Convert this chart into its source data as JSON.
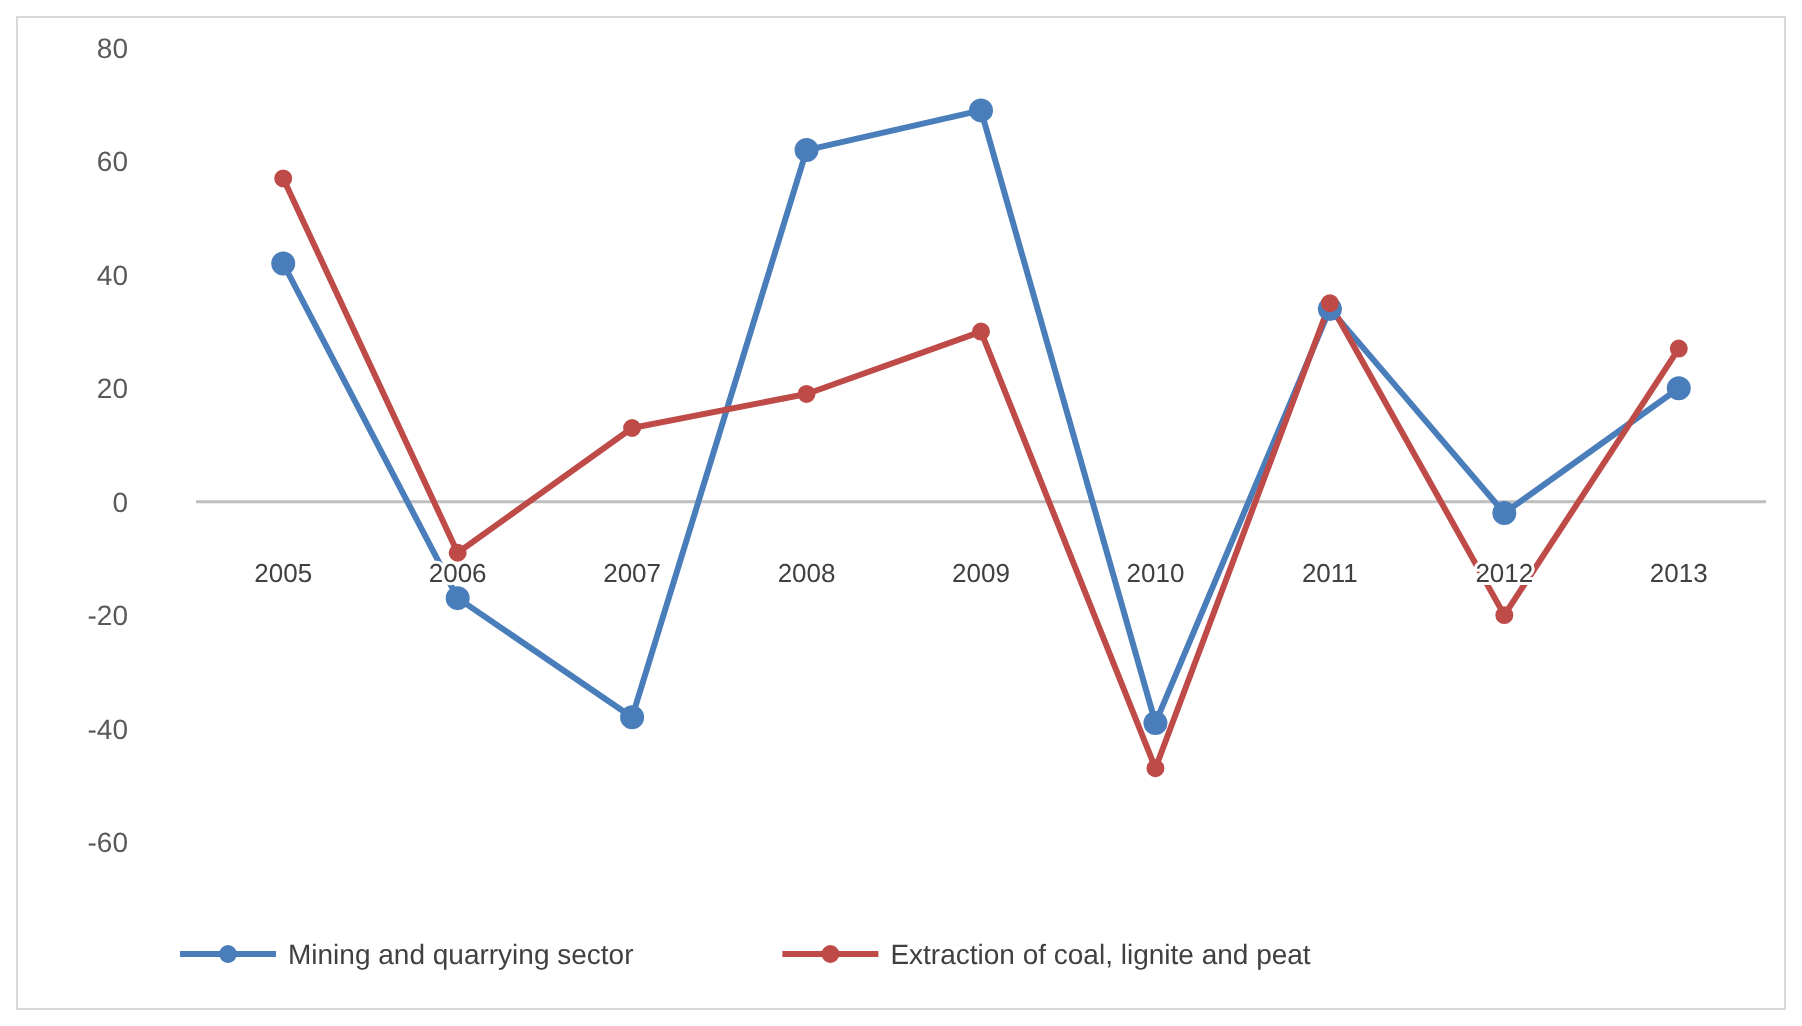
{
  "chart_data": {
    "type": "line",
    "categories": [
      "2005",
      "2006",
      "2007",
      "2008",
      "2009",
      "2010",
      "2011",
      "2012",
      "2013"
    ],
    "series": [
      {
        "name": "Mining and quarrying sector",
        "color": "#4a7ebb",
        "values": [
          42,
          -17,
          -38,
          62,
          69,
          -39,
          34,
          -2,
          20
        ]
      },
      {
        "name": "Extraction of coal, lignite and peat",
        "color": "#be4b48",
        "values": [
          57,
          -9,
          13,
          19,
          30,
          -47,
          35,
          -20,
          27
        ]
      }
    ],
    "ylim": [
      -60,
      80
    ],
    "yticks": [
      -60,
      -40,
      -20,
      0,
      20,
      40,
      60,
      80
    ],
    "grid": false,
    "legend": "bottom",
    "marker": "circle",
    "line_style": "solid"
  }
}
